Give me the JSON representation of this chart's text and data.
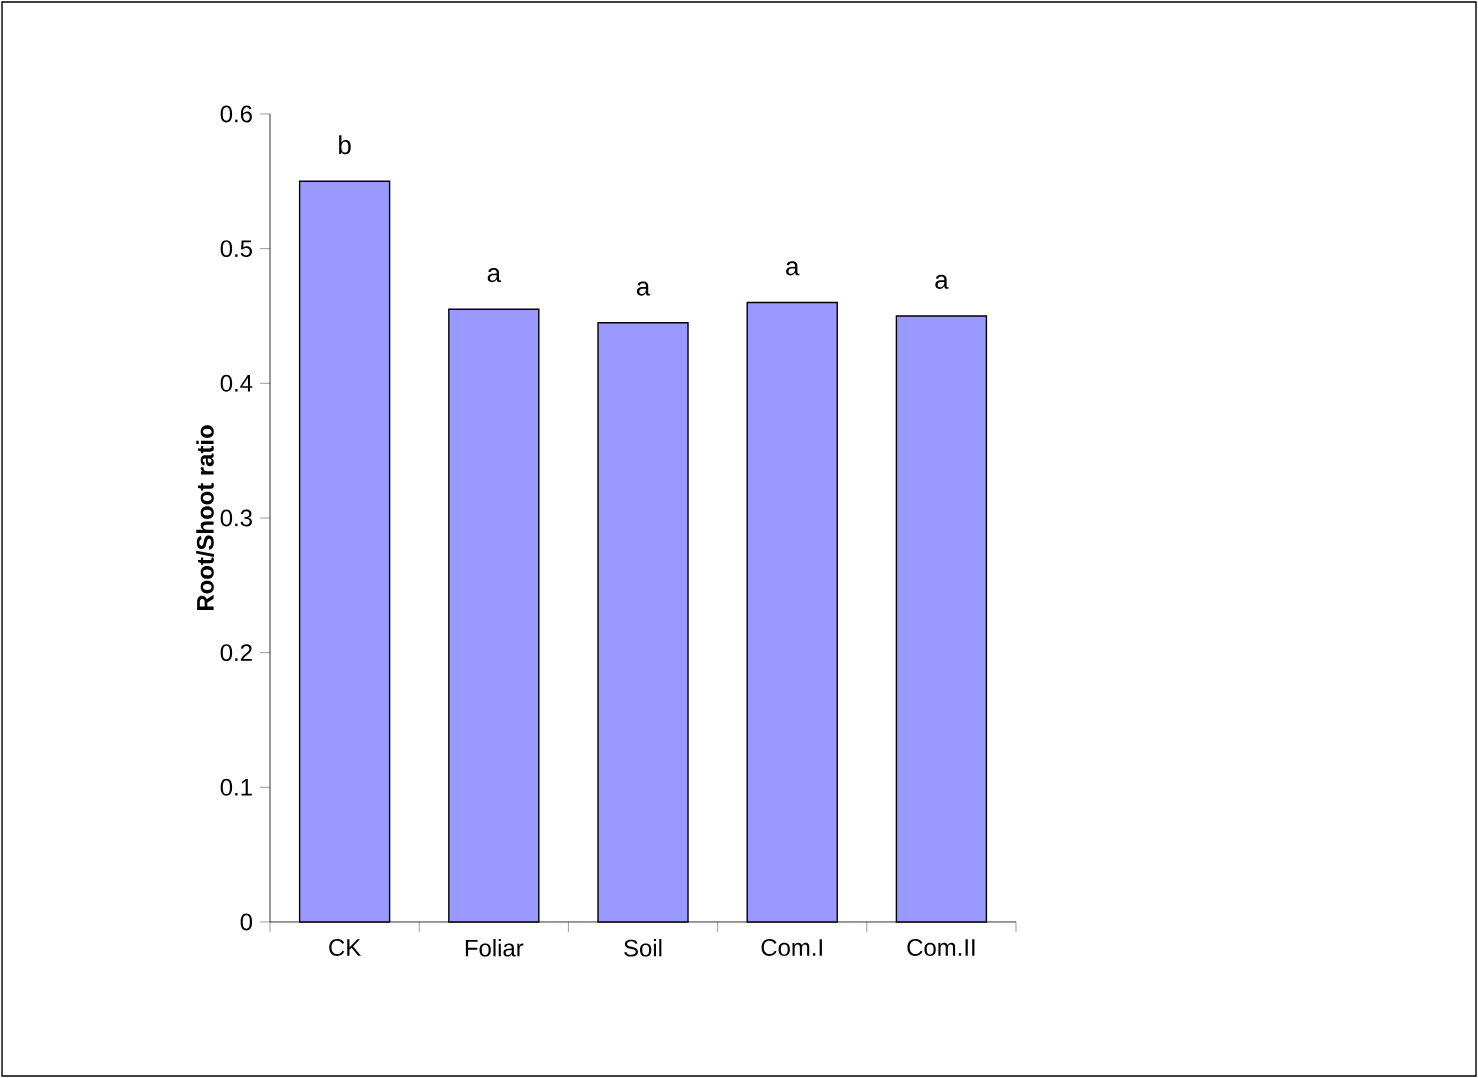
{
  "chart_data": {
    "type": "bar",
    "ylabel": "Root/Shoot ratio",
    "categories": [
      "CK",
      "Foliar",
      "Soil",
      "Com.I",
      "Com.II"
    ],
    "values": [
      0.55,
      0.455,
      0.445,
      0.46,
      0.45
    ],
    "color": "#9999ff",
    "ylim": [
      0,
      0.6
    ],
    "yticks": [
      0,
      0.1,
      0.2,
      0.3,
      0.4,
      0.5,
      0.6
    ],
    "annotations": [
      {
        "text": "b",
        "x": "CK",
        "y": 0.55
      },
      {
        "text": "a",
        "x": "Foliar",
        "y": 0.455
      },
      {
        "text": "a",
        "x": "Soil",
        "y": 0.445
      },
      {
        "text": "a",
        "x": "Com.I",
        "y": 0.46
      },
      {
        "text": "a",
        "x": "Com.II",
        "y": 0.45
      }
    ]
  }
}
